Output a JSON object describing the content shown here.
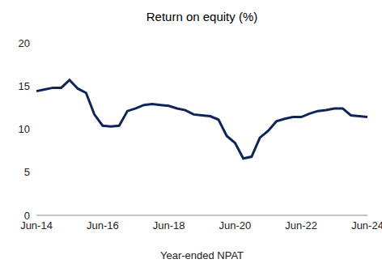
{
  "chart_data": {
    "type": "line",
    "title": "Return on equity (%)",
    "x_label": "Year-ended NPAT",
    "categories": [
      "Jun-14",
      null,
      null,
      null,
      null,
      null,
      null,
      null,
      "Jun-16",
      null,
      null,
      null,
      null,
      null,
      null,
      null,
      "Jun-18",
      null,
      null,
      null,
      null,
      null,
      null,
      null,
      "Jun-20",
      null,
      null,
      null,
      null,
      null,
      null,
      null,
      "Jun-22",
      null,
      null,
      null,
      null,
      null,
      null,
      null,
      "Jun-24"
    ],
    "values": [
      14.4,
      14.6,
      14.8,
      14.8,
      15.7,
      14.7,
      14.2,
      11.7,
      10.4,
      10.3,
      10.4,
      12.1,
      12.4,
      12.8,
      12.9,
      12.8,
      12.7,
      12.4,
      12.2,
      11.7,
      11.6,
      11.5,
      11.1,
      9.2,
      8.4,
      6.6,
      6.8,
      9.0,
      9.8,
      10.9,
      11.2,
      11.4,
      11.4,
      11.8,
      12.1,
      12.2,
      12.4,
      12.4,
      11.6,
      11.5,
      11.4
    ],
    "color": "#0f2557",
    "ylim": [
      0,
      20
    ],
    "yticks": [
      0,
      5,
      10,
      15,
      20
    ],
    "grid": false
  }
}
